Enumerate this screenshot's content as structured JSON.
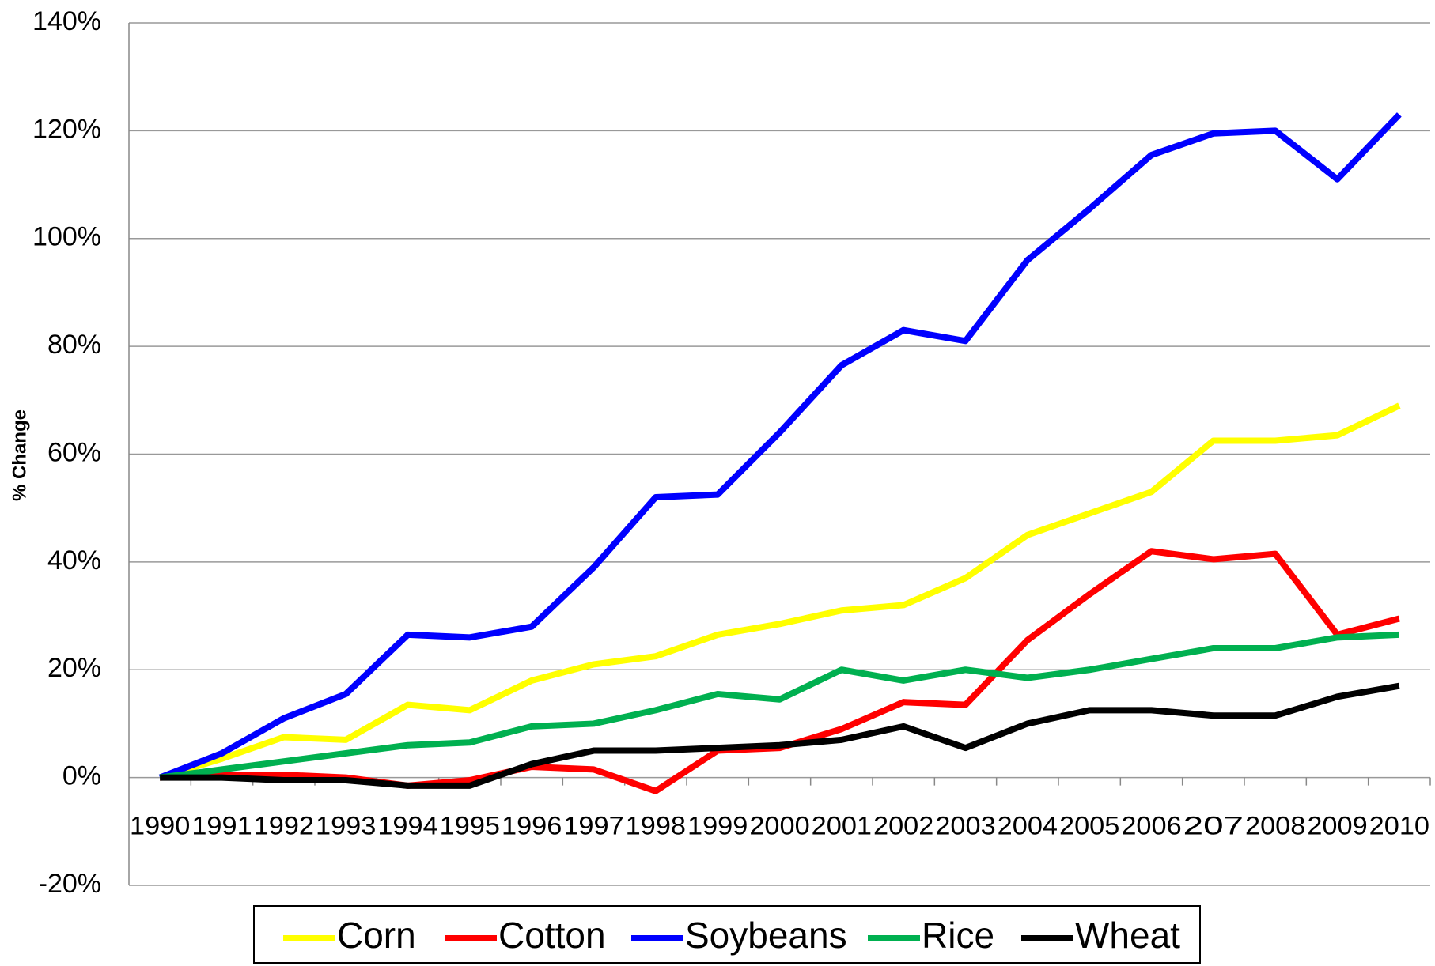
{
  "chart_data": {
    "type": "line",
    "y_label": "% Change",
    "categories": [
      "1990",
      "1991",
      "1992",
      "1993",
      "1994",
      "1995",
      "1996",
      "1997",
      "1998",
      "1999",
      "2000",
      "2001",
      "2002",
      "2003",
      "2004",
      "2005",
      "2006",
      "207",
      "2008",
      "2009",
      "2010"
    ],
    "series": [
      {
        "name": "Corn",
        "color": "#ffff00",
        "values": [
          0,
          3.5,
          7.5,
          7,
          13.5,
          12.5,
          18,
          21,
          22.5,
          26.5,
          28.5,
          31,
          32,
          37,
          45,
          49,
          53,
          62.5,
          62.5,
          63.5,
          69
        ]
      },
      {
        "name": "Cotton",
        "color": "#ff0000",
        "values": [
          0,
          0.5,
          0.5,
          0,
          -1.5,
          -0.5,
          2,
          1.5,
          -2.5,
          5,
          5.5,
          9,
          14,
          13.5,
          25.5,
          34,
          42,
          40.5,
          41.5,
          26.5,
          29.5
        ]
      },
      {
        "name": "Soybeans",
        "color": "#0000ff",
        "values": [
          0,
          4.5,
          11,
          15.5,
          26.5,
          26,
          28,
          39,
          52,
          52.5,
          64,
          76.5,
          83,
          81,
          96,
          105.5,
          115.5,
          119.5,
          120,
          111,
          123
        ]
      },
      {
        "name": "Rice",
        "color": "#00b050",
        "values": [
          0,
          1.5,
          3,
          4.5,
          6,
          6.5,
          9.5,
          10,
          12.5,
          15.5,
          14.5,
          20,
          18,
          20,
          18.5,
          20,
          22,
          24,
          24,
          26,
          26.5
        ]
      },
      {
        "name": "Wheat",
        "color": "#000000",
        "values": [
          0,
          0,
          -0.5,
          -0.5,
          -1.5,
          -1.5,
          2.5,
          5,
          5,
          5.5,
          6,
          7,
          9.5,
          5.5,
          10,
          12.5,
          12.5,
          11.5,
          11.5,
          15,
          17
        ]
      }
    ],
    "ylim": [
      -20,
      140
    ],
    "yticks": [
      {
        "value": -20,
        "label": "-20%"
      },
      {
        "value": 0,
        "label": "0%"
      },
      {
        "value": 20,
        "label": "20%"
      },
      {
        "value": 40,
        "label": "40%"
      },
      {
        "value": 60,
        "label": "60%"
      },
      {
        "value": 80,
        "label": "80%"
      },
      {
        "value": 100,
        "label": "100%"
      },
      {
        "value": 120,
        "label": "120%"
      },
      {
        "value": 140,
        "label": "140%"
      }
    ],
    "grid": true,
    "legend": "bottom"
  }
}
